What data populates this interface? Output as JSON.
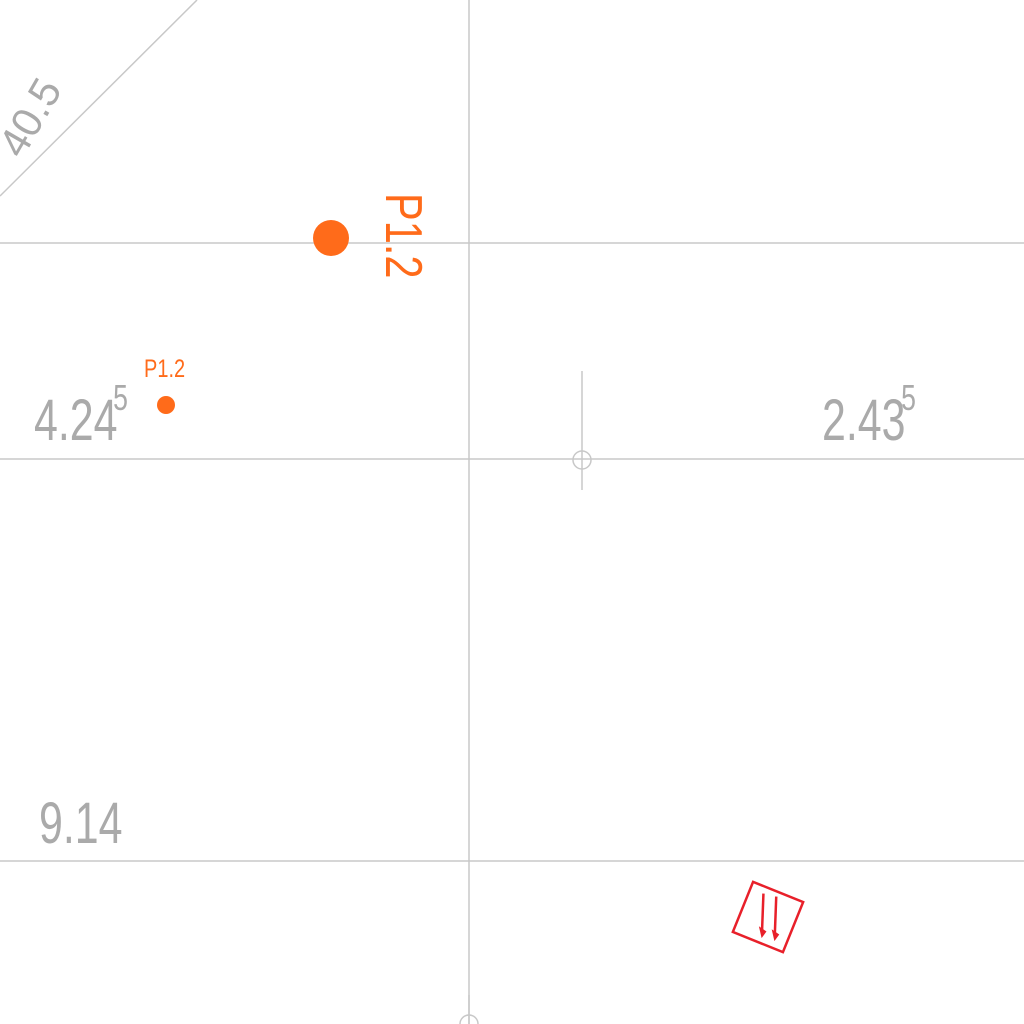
{
  "dimensions": {
    "label_left_base": "4.24",
    "label_left_sup": "5",
    "label_right_base": "2.43",
    "label_right_sup": "5",
    "label_bottom": "9.14",
    "label_diagonal": "40.5"
  },
  "points": {
    "large_label": "P1.2",
    "small_label": "P1.2"
  },
  "colors": {
    "grid_line": "#c8c8c8",
    "dimension_text": "#aaaaaa",
    "point": "#ff6b1a",
    "symbol": "#e8202a"
  },
  "icons": {
    "crosshair": "crosshair-icon",
    "symbol": "direction-arrows-icon"
  }
}
